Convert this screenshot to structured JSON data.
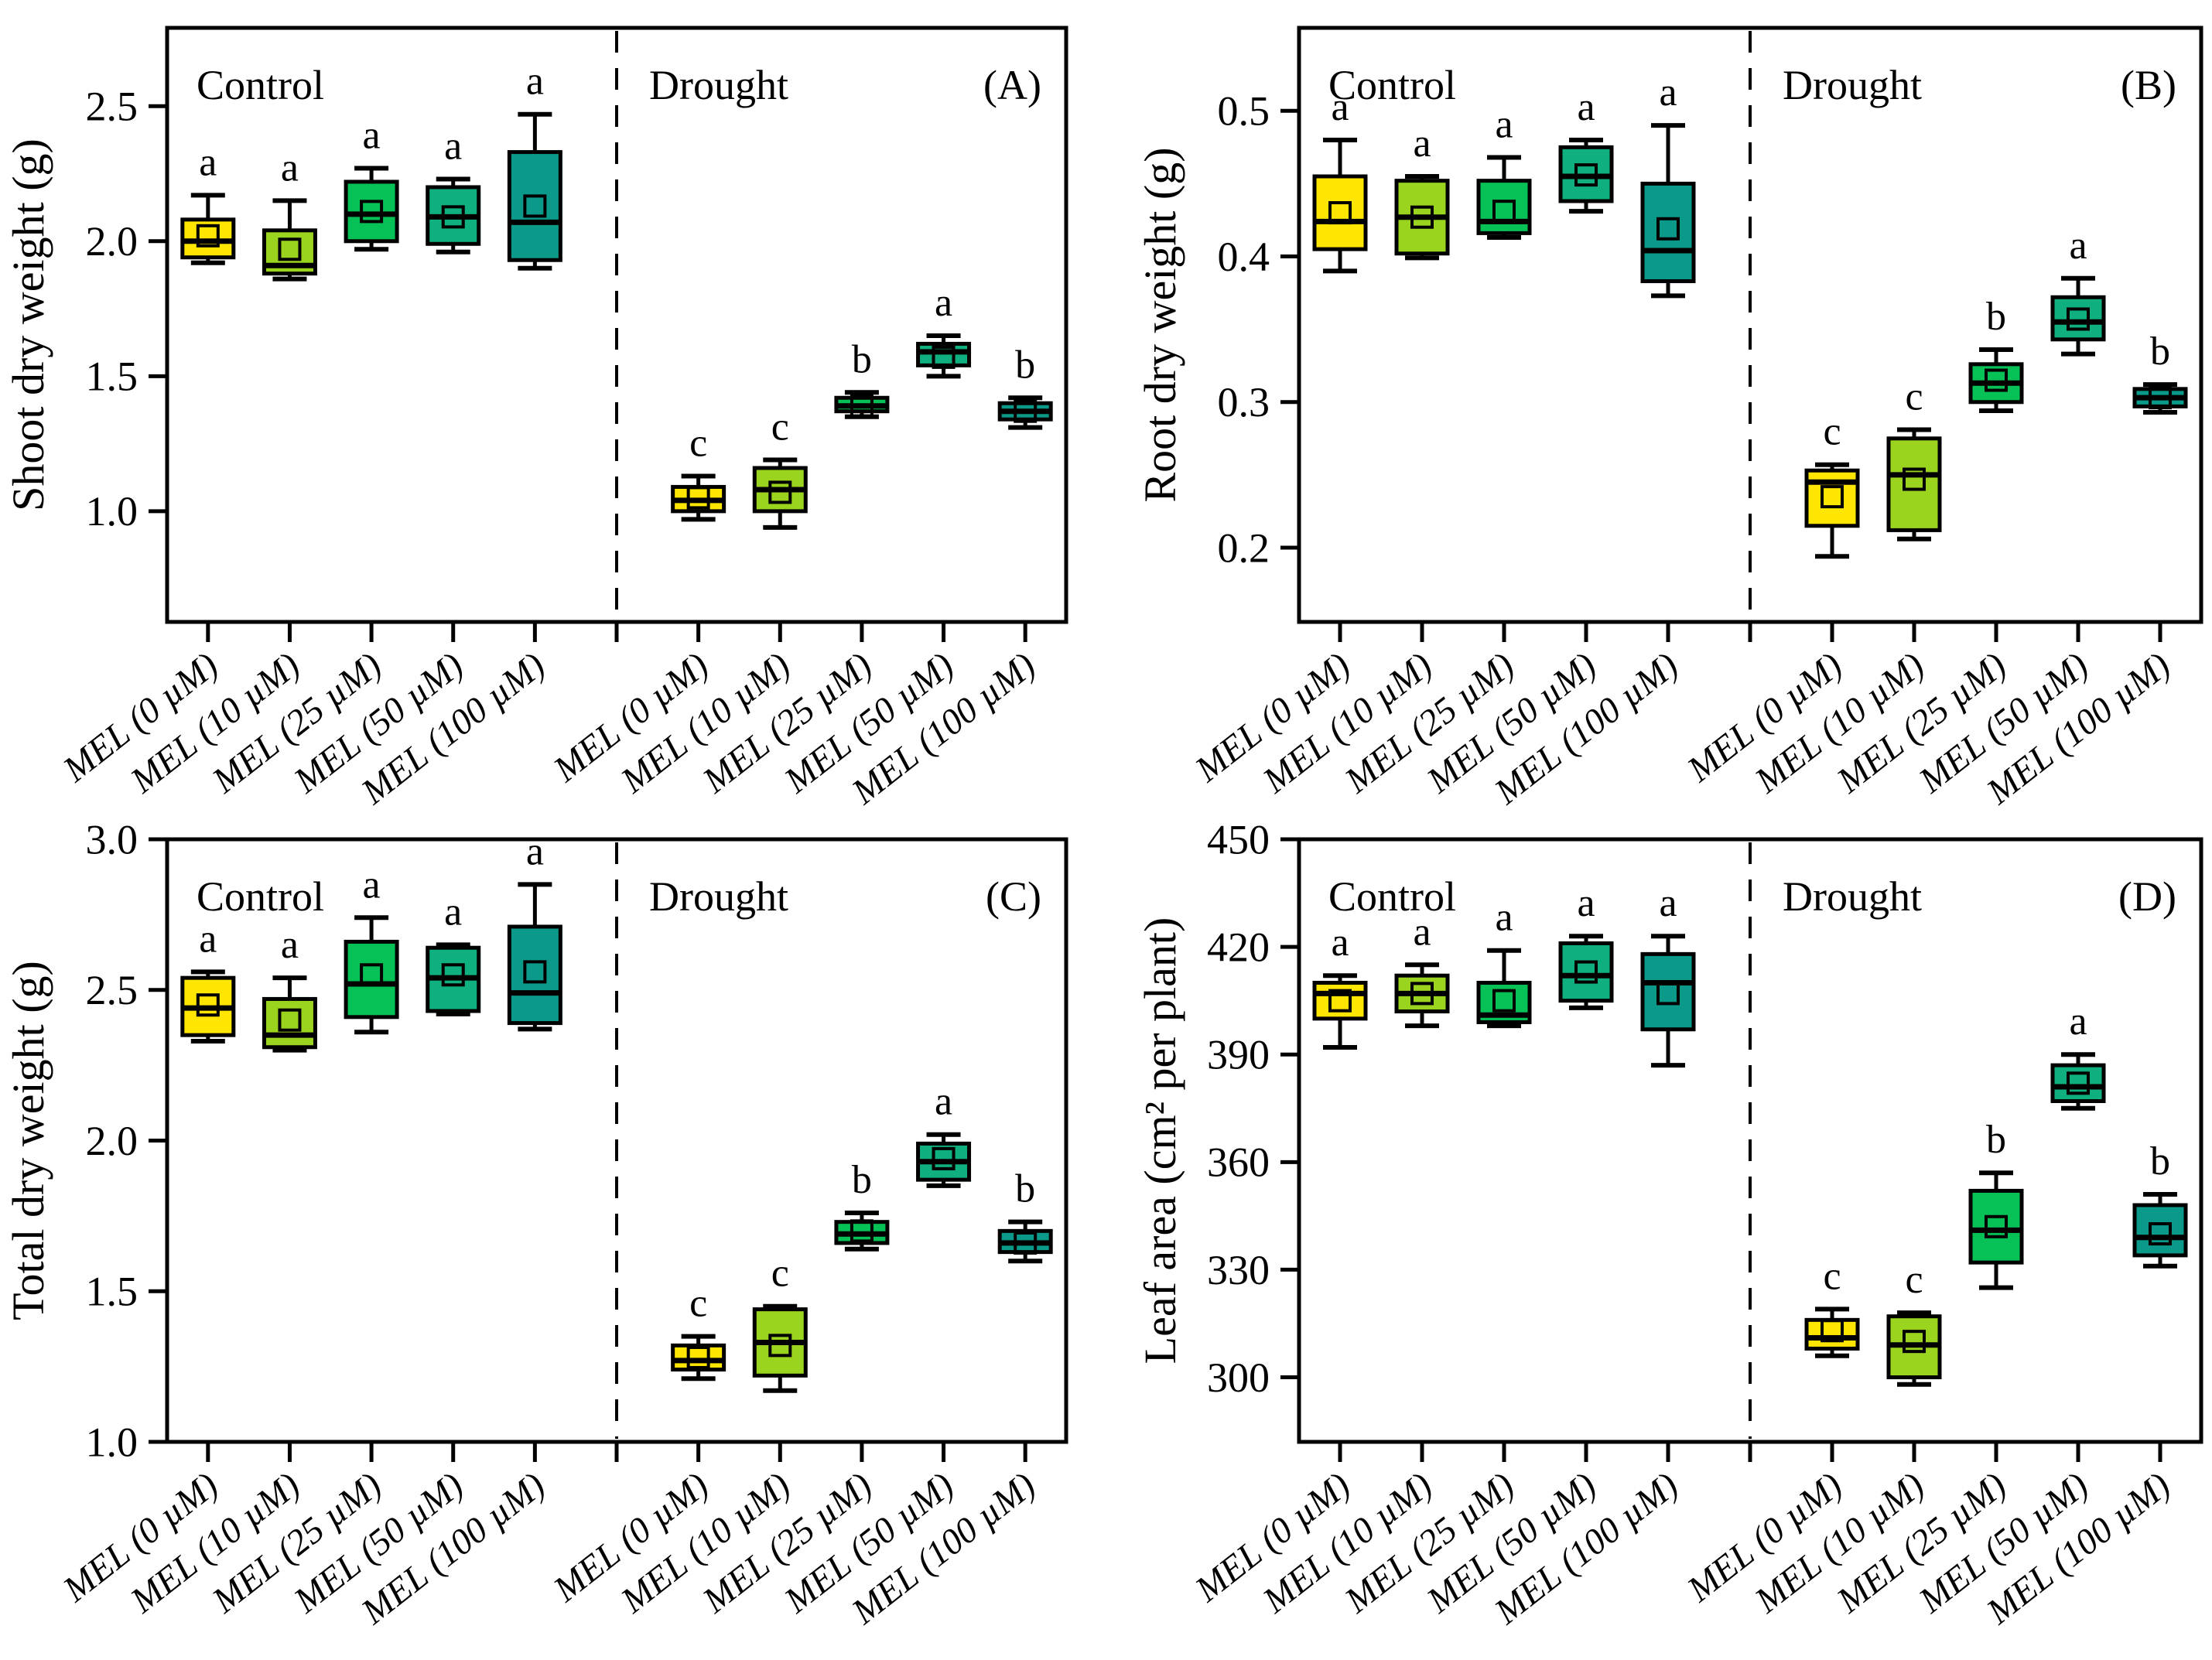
{
  "figure": {
    "background": "#ffffff"
  },
  "palette": {
    "mel_0": "#FFE600",
    "mel_10": "#9BD41F",
    "mel_25": "#06C156",
    "mel_50": "#0FAF7F",
    "mel_100": "#0B9A89"
  },
  "treatments": [
    "MEL (0 µM)",
    "MEL (10 µM)",
    "MEL (25 µM)",
    "MEL (50 µM)",
    "MEL (100 µM)"
  ],
  "condition_labels": {
    "control": "Control",
    "drought": "Drought"
  },
  "chart_data": {
    "type": "boxplot",
    "layout": "2x2 grid, each panel split by a vertical dashed line into Control (left 5 boxes) and Drought (right 5 boxes), one box per MEL dose, colors from yellow to teal by dose, open-square mean markers, significance letters above whiskers",
    "panels": [
      {
        "letter": "(A)",
        "ylabel": "Shoot dry weight (g)",
        "ylim": [
          0.59,
          2.79
        ],
        "ytick_values": [
          1.0,
          1.5,
          2.0,
          2.5
        ],
        "ytick_labels": [
          "1.0",
          "1.5",
          "2.0",
          "2.5"
        ],
        "control": [
          {
            "treatment": "MEL (0 µM)",
            "color_key": "mel_0",
            "low": 1.92,
            "q1": 1.94,
            "median": 2.0,
            "q3": 2.08,
            "high": 2.17,
            "mean": 2.02,
            "letter": "a"
          },
          {
            "treatment": "MEL (10 µM)",
            "color_key": "mel_10",
            "low": 1.86,
            "q1": 1.88,
            "median": 1.91,
            "q3": 2.04,
            "high": 2.15,
            "mean": 1.97,
            "letter": "a"
          },
          {
            "treatment": "MEL (25 µM)",
            "color_key": "mel_25",
            "low": 1.97,
            "q1": 2.0,
            "median": 2.1,
            "q3": 2.22,
            "high": 2.27,
            "mean": 2.11,
            "letter": "a"
          },
          {
            "treatment": "MEL (50 µM)",
            "color_key": "mel_50",
            "low": 1.96,
            "q1": 1.99,
            "median": 2.09,
            "q3": 2.2,
            "high": 2.23,
            "mean": 2.09,
            "letter": "a"
          },
          {
            "treatment": "MEL (100 µM)",
            "color_key": "mel_100",
            "low": 1.9,
            "q1": 1.93,
            "median": 2.07,
            "q3": 2.33,
            "high": 2.47,
            "mean": 2.13,
            "letter": "a"
          }
        ],
        "drought": [
          {
            "treatment": "MEL (0 µM)",
            "color_key": "mel_0",
            "low": 0.97,
            "q1": 1.0,
            "median": 1.04,
            "q3": 1.09,
            "high": 1.13,
            "mean": 1.05,
            "letter": "c"
          },
          {
            "treatment": "MEL (10 µM)",
            "color_key": "mel_10",
            "low": 0.94,
            "q1": 1.0,
            "median": 1.08,
            "q3": 1.16,
            "high": 1.19,
            "mean": 1.07,
            "letter": "c"
          },
          {
            "treatment": "MEL (25 µM)",
            "color_key": "mel_25",
            "low": 1.35,
            "q1": 1.37,
            "median": 1.39,
            "q3": 1.42,
            "high": 1.44,
            "mean": 1.39,
            "letter": "b"
          },
          {
            "treatment": "MEL (50 µM)",
            "color_key": "mel_50",
            "low": 1.5,
            "q1": 1.54,
            "median": 1.59,
            "q3": 1.62,
            "high": 1.65,
            "mean": 1.57,
            "letter": "a"
          },
          {
            "treatment": "MEL (100 µM)",
            "color_key": "mel_100",
            "low": 1.31,
            "q1": 1.34,
            "median": 1.37,
            "q3": 1.4,
            "high": 1.42,
            "mean": 1.37,
            "letter": "b"
          }
        ]
      },
      {
        "letter": "(B)",
        "ylabel": "Root dry weight (g)",
        "ylim": [
          0.149,
          0.557
        ],
        "ytick_values": [
          0.2,
          0.3,
          0.4,
          0.5
        ],
        "ytick_labels": [
          "0.2",
          "0.3",
          "0.4",
          "0.5"
        ],
        "control": [
          {
            "treatment": "MEL (0 µM)",
            "color_key": "mel_0",
            "low": 0.39,
            "q1": 0.405,
            "median": 0.424,
            "q3": 0.455,
            "high": 0.48,
            "mean": 0.43,
            "letter": "a"
          },
          {
            "treatment": "MEL (10 µM)",
            "color_key": "mel_10",
            "low": 0.399,
            "q1": 0.402,
            "median": 0.427,
            "q3": 0.452,
            "high": 0.455,
            "mean": 0.427,
            "letter": "a"
          },
          {
            "treatment": "MEL (25 µM)",
            "color_key": "mel_25",
            "low": 0.413,
            "q1": 0.416,
            "median": 0.424,
            "q3": 0.452,
            "high": 0.468,
            "mean": 0.431,
            "letter": "a"
          },
          {
            "treatment": "MEL (50 µM)",
            "color_key": "mel_50",
            "low": 0.431,
            "q1": 0.438,
            "median": 0.455,
            "q3": 0.475,
            "high": 0.48,
            "mean": 0.456,
            "letter": "a"
          },
          {
            "treatment": "MEL (100 µM)",
            "color_key": "mel_100",
            "low": 0.373,
            "q1": 0.383,
            "median": 0.404,
            "q3": 0.45,
            "high": 0.49,
            "mean": 0.419,
            "letter": "a"
          }
        ],
        "drought": [
          {
            "treatment": "MEL (0 µM)",
            "color_key": "mel_0",
            "low": 0.194,
            "q1": 0.215,
            "median": 0.245,
            "q3": 0.253,
            "high": 0.257,
            "mean": 0.235,
            "letter": "c"
          },
          {
            "treatment": "MEL (10 µM)",
            "color_key": "mel_10",
            "low": 0.206,
            "q1": 0.212,
            "median": 0.25,
            "q3": 0.275,
            "high": 0.281,
            "mean": 0.247,
            "letter": "c"
          },
          {
            "treatment": "MEL (25 µM)",
            "color_key": "mel_25",
            "low": 0.294,
            "q1": 0.3,
            "median": 0.313,
            "q3": 0.326,
            "high": 0.336,
            "mean": 0.315,
            "letter": "b"
          },
          {
            "treatment": "MEL (50 µM)",
            "color_key": "mel_50",
            "low": 0.333,
            "q1": 0.343,
            "median": 0.355,
            "q3": 0.372,
            "high": 0.385,
            "mean": 0.357,
            "letter": "a"
          },
          {
            "treatment": "MEL (100 µM)",
            "color_key": "mel_100",
            "low": 0.293,
            "q1": 0.297,
            "median": 0.303,
            "q3": 0.309,
            "high": 0.312,
            "mean": 0.303,
            "letter": "b"
          }
        ]
      },
      {
        "letter": "(C)",
        "ylabel": "Total dry weight (g)",
        "ylim": [
          1.0,
          3.0
        ],
        "ytick_values": [
          1.0,
          1.5,
          2.0,
          2.5,
          3.0
        ],
        "ytick_labels": [
          "1.0",
          "1.5",
          "2.0",
          "2.5",
          "3.0"
        ],
        "control": [
          {
            "treatment": "MEL (0 µM)",
            "color_key": "mel_0",
            "low": 2.33,
            "q1": 2.35,
            "median": 2.44,
            "q3": 2.54,
            "high": 2.56,
            "mean": 2.45,
            "letter": "a"
          },
          {
            "treatment": "MEL (10 µM)",
            "color_key": "mel_10",
            "low": 2.3,
            "q1": 2.31,
            "median": 2.35,
            "q3": 2.47,
            "high": 2.54,
            "mean": 2.4,
            "letter": "a"
          },
          {
            "treatment": "MEL (25 µM)",
            "color_key": "mel_25",
            "low": 2.36,
            "q1": 2.41,
            "median": 2.52,
            "q3": 2.66,
            "high": 2.74,
            "mean": 2.55,
            "letter": "a"
          },
          {
            "treatment": "MEL (50 µM)",
            "color_key": "mel_50",
            "low": 2.42,
            "q1": 2.43,
            "median": 2.54,
            "q3": 2.64,
            "high": 2.65,
            "mean": 2.55,
            "letter": "a"
          },
          {
            "treatment": "MEL (100 µM)",
            "color_key": "mel_100",
            "low": 2.37,
            "q1": 2.39,
            "median": 2.49,
            "q3": 2.71,
            "high": 2.85,
            "mean": 2.56,
            "letter": "a"
          }
        ],
        "drought": [
          {
            "treatment": "MEL (0 µM)",
            "color_key": "mel_0",
            "low": 1.21,
            "q1": 1.24,
            "median": 1.27,
            "q3": 1.32,
            "high": 1.35,
            "mean": 1.28,
            "letter": "c"
          },
          {
            "treatment": "MEL (10 µM)",
            "color_key": "mel_10",
            "low": 1.17,
            "q1": 1.22,
            "median": 1.33,
            "q3": 1.44,
            "high": 1.45,
            "mean": 1.32,
            "letter": "c"
          },
          {
            "treatment": "MEL (25 µM)",
            "color_key": "mel_25",
            "low": 1.64,
            "q1": 1.66,
            "median": 1.69,
            "q3": 1.73,
            "high": 1.76,
            "mean": 1.7,
            "letter": "b"
          },
          {
            "treatment": "MEL (50 µM)",
            "color_key": "mel_50",
            "low": 1.85,
            "q1": 1.87,
            "median": 1.93,
            "q3": 1.99,
            "high": 2.02,
            "mean": 1.94,
            "letter": "a"
          },
          {
            "treatment": "MEL (100 µM)",
            "color_key": "mel_100",
            "low": 1.6,
            "q1": 1.63,
            "median": 1.66,
            "q3": 1.7,
            "high": 1.73,
            "mean": 1.66,
            "letter": "b"
          }
        ]
      },
      {
        "letter": "(D)",
        "ylabel": "Leaf area (cm² per plant)",
        "ylim": [
          282,
          450
        ],
        "ytick_values": [
          300,
          330,
          360,
          390,
          420,
          450
        ],
        "ytick_labels": [
          "300",
          "330",
          "360",
          "390",
          "420",
          "450"
        ],
        "control": [
          {
            "treatment": "MEL (0 µM)",
            "color_key": "mel_0",
            "low": 392,
            "q1": 400,
            "median": 407,
            "q3": 410,
            "high": 412,
            "mean": 405,
            "letter": "a"
          },
          {
            "treatment": "MEL (10 µM)",
            "color_key": "mel_10",
            "low": 398,
            "q1": 402,
            "median": 407,
            "q3": 412,
            "high": 415,
            "mean": 407,
            "letter": "a"
          },
          {
            "treatment": "MEL (25 µM)",
            "color_key": "mel_25",
            "low": 398,
            "q1": 399,
            "median": 401,
            "q3": 410,
            "high": 419,
            "mean": 405,
            "letter": "a"
          },
          {
            "treatment": "MEL (50 µM)",
            "color_key": "mel_50",
            "low": 403,
            "q1": 405,
            "median": 412,
            "q3": 421,
            "high": 423,
            "mean": 413,
            "letter": "a"
          },
          {
            "treatment": "MEL (100 µM)",
            "color_key": "mel_100",
            "low": 387,
            "q1": 397,
            "median": 410,
            "q3": 418,
            "high": 423,
            "mean": 407,
            "letter": "a"
          }
        ],
        "drought": [
          {
            "treatment": "MEL (0 µM)",
            "color_key": "mel_0",
            "low": 306,
            "q1": 308,
            "median": 311,
            "q3": 316,
            "high": 319,
            "mean": 313,
            "letter": "c"
          },
          {
            "treatment": "MEL (10 µM)",
            "color_key": "mel_10",
            "low": 298,
            "q1": 300,
            "median": 309,
            "q3": 317,
            "high": 318,
            "mean": 310,
            "letter": "c"
          },
          {
            "treatment": "MEL (25 µM)",
            "color_key": "mel_25",
            "low": 325,
            "q1": 332,
            "median": 341,
            "q3": 352,
            "high": 357,
            "mean": 342,
            "letter": "b"
          },
          {
            "treatment": "MEL (50 µM)",
            "color_key": "mel_50",
            "low": 375,
            "q1": 377,
            "median": 381,
            "q3": 387,
            "high": 390,
            "mean": 382,
            "letter": "a"
          },
          {
            "treatment": "MEL (100 µM)",
            "color_key": "mel_100",
            "low": 331,
            "q1": 334,
            "median": 339,
            "q3": 348,
            "high": 351,
            "mean": 340,
            "letter": "b"
          }
        ]
      }
    ]
  }
}
